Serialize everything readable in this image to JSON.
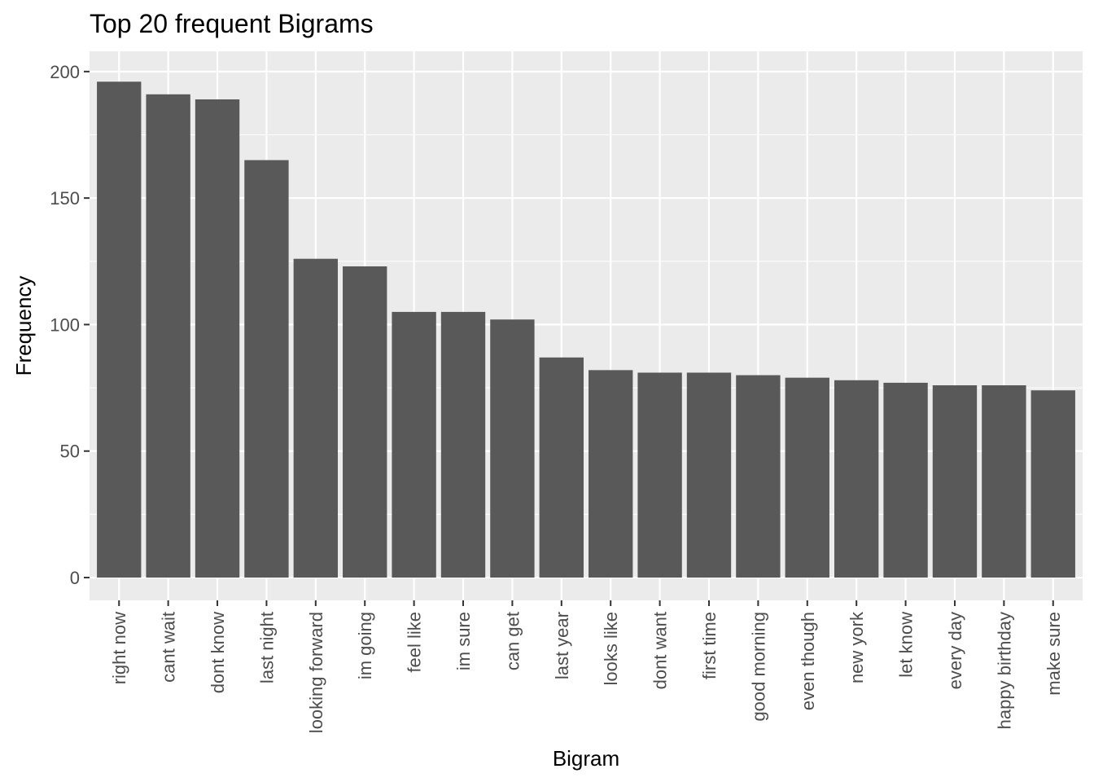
{
  "chart_data": {
    "type": "bar",
    "title": "Top 20 frequent Bigrams",
    "xlabel": "Bigram",
    "ylabel": "Frequency",
    "ylim": [
      -9,
      208
    ],
    "yticks": [
      0,
      50,
      100,
      150,
      200
    ],
    "grid": true,
    "colors": {
      "bar": "#595959",
      "panel": "#ebebeb",
      "grid": "#ffffff",
      "tick_text": "#4d4d4d",
      "tick_mark": "#333333"
    },
    "categories": [
      "right now",
      "cant wait",
      "dont know",
      "last night",
      "looking forward",
      "im going",
      "feel like",
      "im sure",
      "can get",
      "last year",
      "looks like",
      "dont want",
      "first time",
      "good morning",
      "even though",
      "new york",
      "let know",
      "every day",
      "happy birthday",
      "make sure"
    ],
    "values": [
      196,
      191,
      189,
      165,
      126,
      123,
      105,
      105,
      102,
      87,
      82,
      81,
      81,
      80,
      79,
      78,
      77,
      76,
      76,
      74
    ]
  }
}
